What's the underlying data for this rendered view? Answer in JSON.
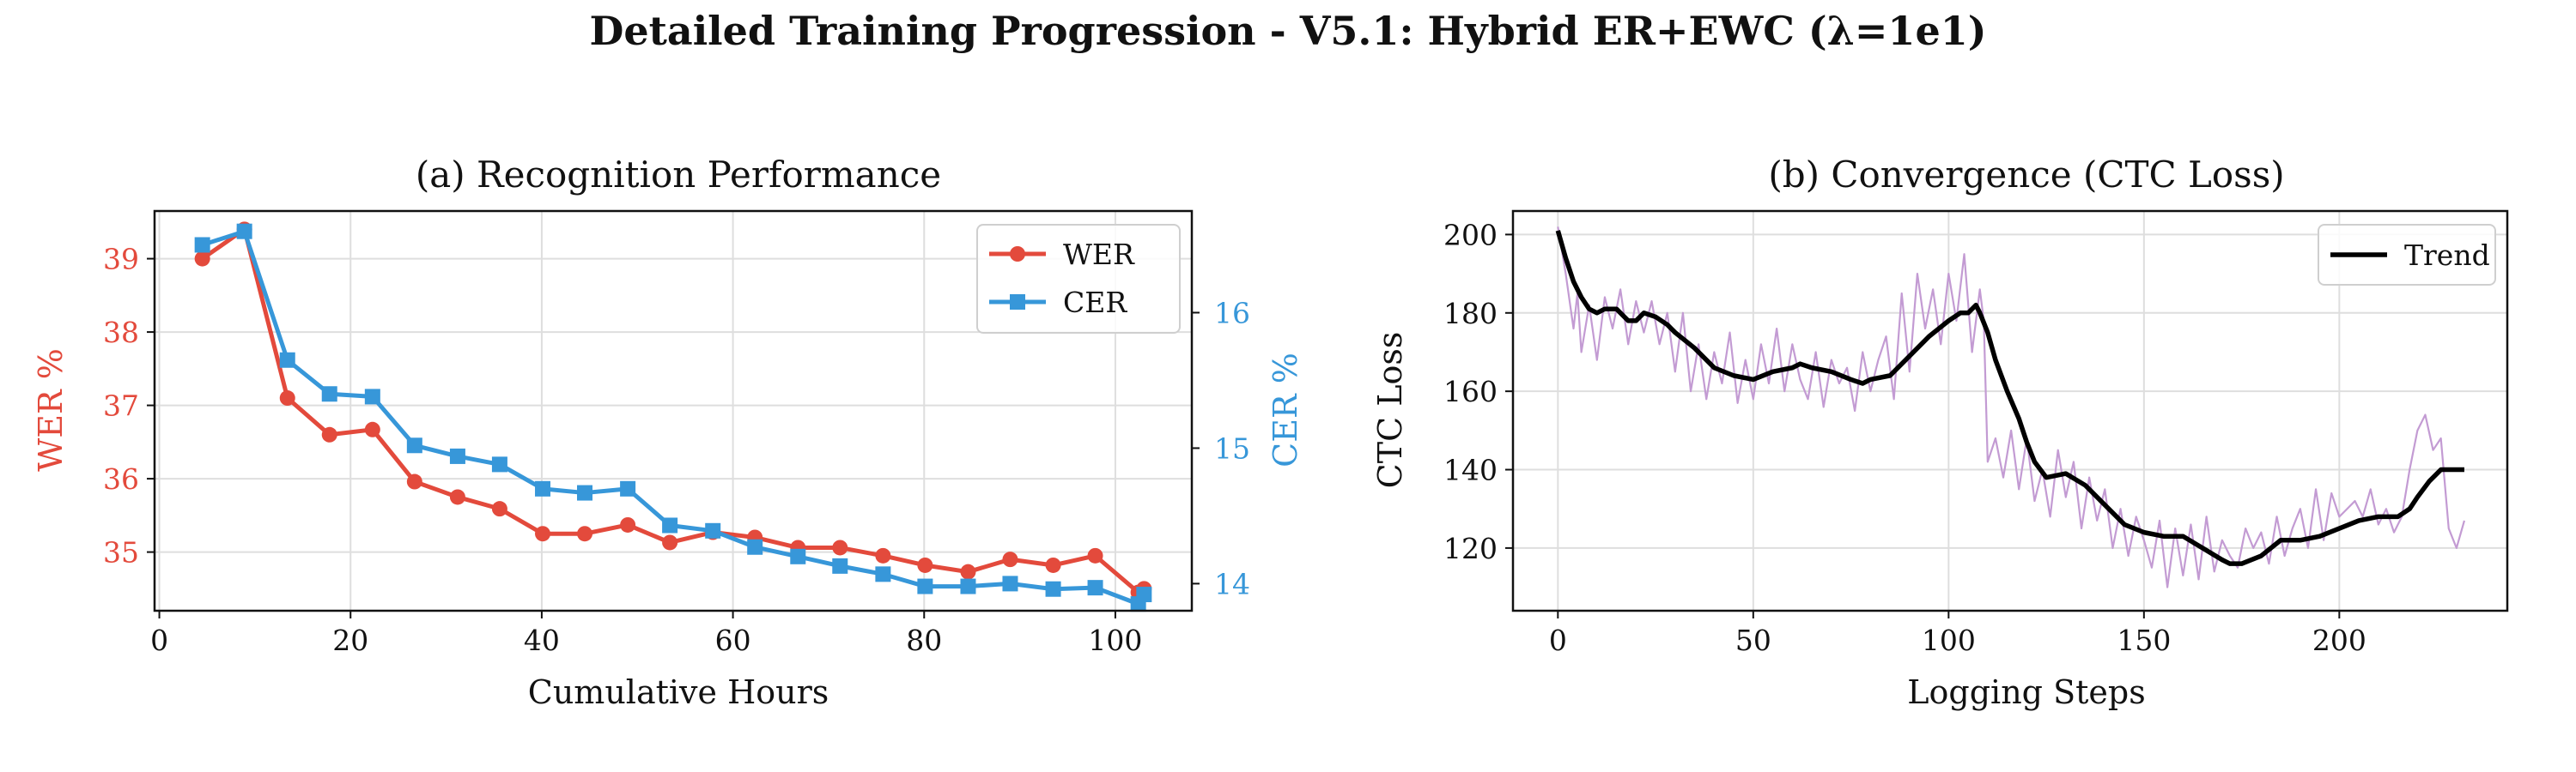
{
  "suptitle": "Detailed Training Progression - V5.1: Hybrid ER+EWC (λ=1e1)",
  "colors": {
    "wer": "#e34a3c",
    "cer": "#3797d9",
    "trend": "#000000",
    "raw": "#c39bd3",
    "grid": "#dedede"
  },
  "chart_data": [
    {
      "type": "line",
      "title": "(a) Recognition Performance",
      "xlabel": "Cumulative Hours",
      "ylabel_left": "WER %",
      "ylabel_right": "CER %",
      "xlim": [
        -0.5,
        108
      ],
      "ylim_left": [
        34.2,
        39.65
      ],
      "ylim_right": [
        13.8,
        16.75
      ],
      "xticks": [
        0,
        20,
        40,
        60,
        80,
        100
      ],
      "yticks_left": [
        35,
        36,
        37,
        38,
        39
      ],
      "yticks_right": [
        14,
        15,
        16
      ],
      "x": [
        4.5,
        8.9,
        13.4,
        17.8,
        22.3,
        26.7,
        31.2,
        35.6,
        40.1,
        44.5,
        49.0,
        53.4,
        57.9,
        62.3,
        66.8,
        71.2,
        75.7,
        80.1,
        84.6,
        89.0,
        93.5,
        97.9,
        102.4,
        103.0
      ],
      "series": [
        {
          "name": "WER",
          "axis": "left",
          "marker": "circle",
          "values": [
            39.0,
            39.4,
            37.1,
            36.6,
            36.67,
            35.96,
            35.75,
            35.59,
            35.25,
            35.25,
            35.37,
            35.13,
            35.27,
            35.2,
            35.06,
            35.06,
            34.95,
            34.82,
            34.73,
            34.9,
            34.82,
            34.95,
            34.45,
            34.5
          ]
        },
        {
          "name": "CER",
          "axis": "right",
          "marker": "square",
          "values": [
            16.5,
            16.6,
            15.65,
            15.4,
            15.38,
            15.02,
            14.94,
            14.88,
            14.7,
            14.67,
            14.7,
            14.43,
            14.39,
            14.27,
            14.2,
            14.13,
            14.07,
            13.98,
            13.98,
            14.0,
            13.96,
            13.97,
            13.85,
            13.92
          ]
        }
      ],
      "legend": [
        "WER",
        "CER"
      ],
      "legend_position": "top-right"
    },
    {
      "type": "line",
      "title": "(b) Convergence (CTC Loss)",
      "xlabel": "Logging Steps",
      "ylabel": "CTC Loss",
      "xlim": [
        -11.5,
        243
      ],
      "ylim": [
        104,
        206
      ],
      "xticks": [
        0,
        50,
        100,
        150,
        200
      ],
      "yticks": [
        120,
        140,
        160,
        180,
        200
      ],
      "series": [
        {
          "name": "Trend",
          "style": "thick-black",
          "in_legend": true,
          "x": [
            0,
            2,
            4,
            6,
            8,
            10,
            12,
            15,
            18,
            20,
            22,
            25,
            28,
            30,
            35,
            40,
            45,
            50,
            55,
            60,
            62,
            65,
            70,
            75,
            78,
            80,
            85,
            90,
            95,
            100,
            103,
            105,
            107,
            108,
            110,
            112,
            115,
            118,
            120,
            122,
            125,
            130,
            135,
            140,
            145,
            150,
            155,
            160,
            165,
            170,
            172,
            175,
            180,
            185,
            190,
            195,
            200,
            205,
            210,
            212,
            215,
            218,
            220,
            223,
            226,
            228,
            232
          ],
          "y": [
            201,
            194,
            188,
            184,
            181,
            180,
            181,
            181,
            178,
            178,
            180,
            179,
            177,
            175,
            171,
            166,
            164,
            163,
            165,
            166,
            167,
            166,
            165,
            163,
            162,
            163,
            164,
            169,
            174,
            178,
            180,
            180,
            182,
            180,
            175,
            168,
            160,
            153,
            147,
            142,
            138,
            139,
            136,
            131,
            126,
            124,
            123,
            123,
            120,
            117,
            116,
            116,
            118,
            122,
            122,
            123,
            125,
            127,
            128,
            128,
            128,
            130,
            133,
            137,
            140,
            140,
            140
          ]
        },
        {
          "name": "Raw loss",
          "style": "thin-purple",
          "in_legend": false,
          "x": [
            0,
            2,
            4,
            5,
            6,
            8,
            10,
            12,
            14,
            16,
            18,
            20,
            22,
            24,
            26,
            28,
            30,
            32,
            34,
            36,
            38,
            40,
            42,
            44,
            46,
            48,
            50,
            52,
            54,
            56,
            58,
            60,
            62,
            64,
            66,
            68,
            70,
            72,
            74,
            76,
            78,
            80,
            82,
            84,
            86,
            88,
            90,
            92,
            94,
            96,
            98,
            100,
            102,
            104,
            106,
            108,
            109,
            110,
            112,
            114,
            116,
            118,
            120,
            122,
            124,
            126,
            128,
            130,
            132,
            134,
            136,
            138,
            140,
            142,
            144,
            146,
            148,
            150,
            152,
            154,
            156,
            158,
            160,
            162,
            164,
            166,
            168,
            170,
            172,
            174,
            176,
            178,
            180,
            182,
            184,
            186,
            188,
            190,
            192,
            194,
            196,
            198,
            200,
            202,
            204,
            206,
            208,
            210,
            212,
            214,
            216,
            218,
            220,
            222,
            224,
            226,
            228,
            230,
            232
          ],
          "y": [
            202,
            190,
            176,
            185,
            170,
            182,
            168,
            184,
            176,
            186,
            172,
            183,
            175,
            183,
            172,
            180,
            165,
            180,
            160,
            172,
            158,
            170,
            162,
            175,
            157,
            168,
            158,
            172,
            162,
            176,
            160,
            172,
            163,
            158,
            170,
            156,
            168,
            162,
            166,
            155,
            170,
            160,
            168,
            174,
            158,
            185,
            165,
            190,
            176,
            186,
            172,
            190,
            178,
            195,
            170,
            186,
            178,
            142,
            148,
            138,
            150,
            135,
            148,
            132,
            140,
            128,
            145,
            133,
            142,
            125,
            138,
            127,
            135,
            120,
            130,
            118,
            128,
            122,
            115,
            127,
            110,
            125,
            113,
            126,
            112,
            128,
            114,
            122,
            118,
            115,
            125,
            120,
            124,
            116,
            128,
            118,
            125,
            130,
            120,
            135,
            122,
            134,
            128,
            130,
            132,
            128,
            135,
            126,
            130,
            124,
            128,
            140,
            150,
            154,
            145,
            148,
            125,
            120,
            127
          ]
        }
      ],
      "legend": [
        "Trend"
      ],
      "legend_position": "top-right"
    }
  ]
}
